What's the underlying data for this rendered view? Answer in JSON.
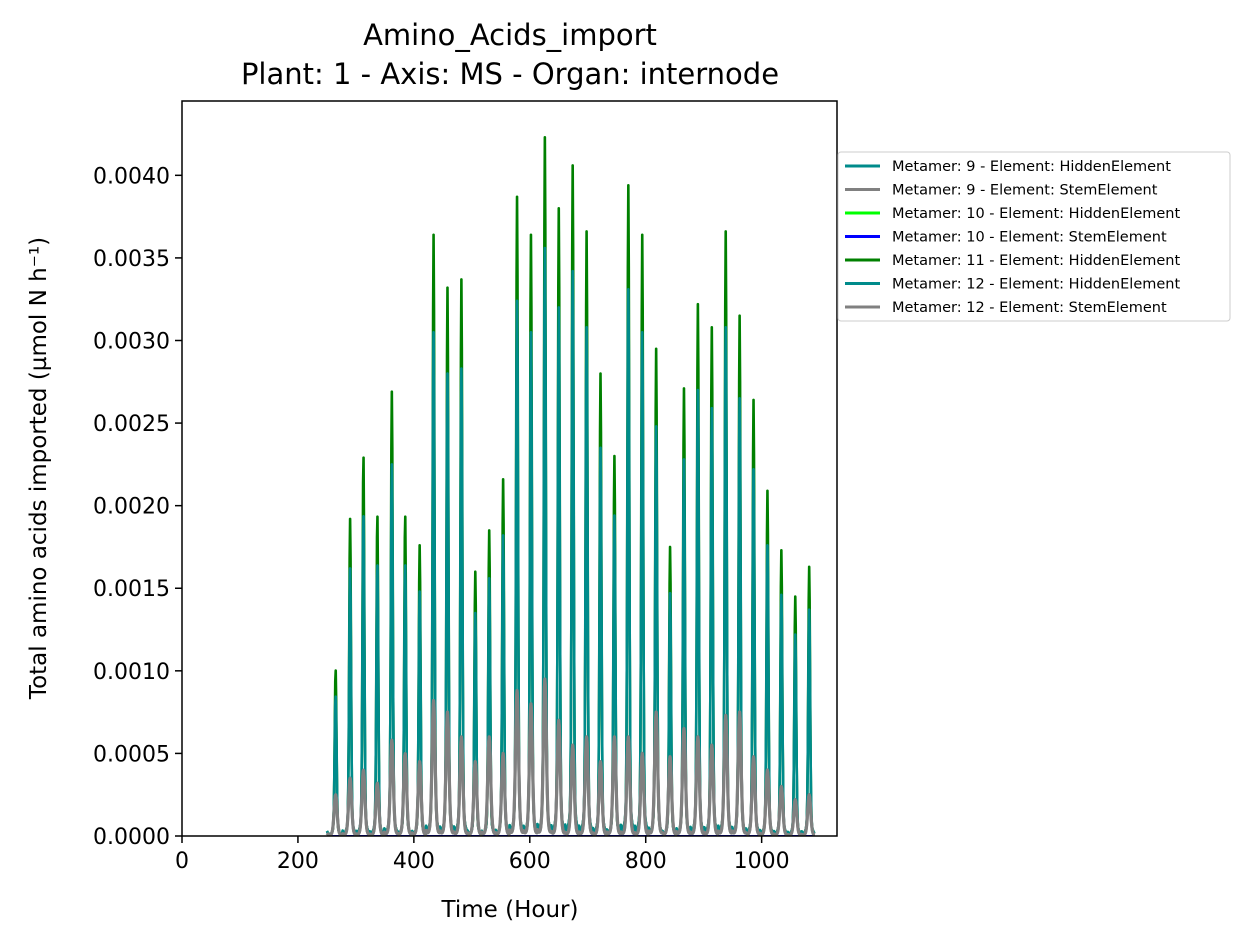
{
  "chart_data": {
    "type": "line",
    "title": "Amino_Acids_import",
    "subtitle": "Plant: 1 - Axis: MS - Organ: internode",
    "xlabel": "Time (Hour)",
    "ylabel": "Total amino acids imported (µmol N h⁻¹)",
    "xlim": [
      0,
      1130
    ],
    "ylim": [
      0,
      0.00445
    ],
    "xticks": [
      0,
      200,
      400,
      600,
      800,
      1000
    ],
    "xtick_labels": [
      "0",
      "200",
      "400",
      "600",
      "800",
      "1000"
    ],
    "yticks": [
      0,
      0.0005,
      0.001,
      0.0015,
      0.002,
      0.0025,
      0.003,
      0.0035,
      0.004
    ],
    "ytick_labels": [
      "0.0000",
      "0.0005",
      "0.0010",
      "0.0015",
      "0.0020",
      "0.0025",
      "0.0030",
      "0.0035",
      "0.0040"
    ],
    "grid": false,
    "legend_placement": "outside-right",
    "series": [
      {
        "name": "Metamer: 9 - Element: HiddenElement",
        "color": "#008b8b",
        "kind": "hidden"
      },
      {
        "name": "Metamer: 9 - Element: StemElement",
        "color": "#808080",
        "kind": "stem"
      },
      {
        "name": "Metamer: 10 - Element: HiddenElement",
        "color": "#00ff00",
        "kind": "hidden"
      },
      {
        "name": "Metamer: 10 - Element: StemElement",
        "color": "#0000ff",
        "kind": "stem"
      },
      {
        "name": "Metamer: 11 - Element: HiddenElement",
        "color": "#008000",
        "kind": "hidden"
      },
      {
        "name": "Metamer: 12 - Element: HiddenElement",
        "color": "#008b8b",
        "kind": "hidden"
      },
      {
        "name": "Metamer: 12 - Element: StemElement",
        "color": "#808080",
        "kind": "stem"
      }
    ],
    "daily_peaks": {
      "x": [
        265,
        290,
        313,
        337,
        362,
        385,
        410,
        434,
        458,
        482,
        506,
        530,
        554,
        578,
        602,
        626,
        650,
        674,
        698,
        722,
        746,
        770,
        794,
        818,
        842,
        866,
        890,
        914,
        938,
        962,
        986,
        1010,
        1034,
        1058,
        1082
      ],
      "green": [
        0.00101,
        0.00192,
        0.00231,
        0.00195,
        0.00269,
        0.00195,
        0.00176,
        0.00364,
        0.00332,
        0.00337,
        0.0016,
        0.00185,
        0.00216,
        0.00387,
        0.00364,
        0.00423,
        0.0038,
        0.00406,
        0.00366,
        0.0028,
        0.0023,
        0.00394,
        0.00364,
        0.00295,
        0.00175,
        0.00271,
        0.00322,
        0.00308,
        0.00366,
        0.00315,
        0.00264,
        0.00209,
        0.00173,
        0.00145,
        0.00163
      ],
      "teal": [
        0.00085,
        0.00162,
        0.00195,
        0.00165,
        0.00225,
        0.00165,
        0.00148,
        0.00305,
        0.0028,
        0.00283,
        0.00135,
        0.00156,
        0.00182,
        0.00324,
        0.00305,
        0.00356,
        0.0032,
        0.00342,
        0.00308,
        0.00235,
        0.00194,
        0.00331,
        0.00305,
        0.00248,
        0.00147,
        0.00228,
        0.0027,
        0.00259,
        0.00308,
        0.00265,
        0.00222,
        0.00176,
        0.00146,
        0.00122,
        0.00137
      ],
      "gray": [
        0.00025,
        0.00035,
        0.0004,
        0.00032,
        0.00058,
        0.0005,
        0.00045,
        0.00082,
        0.00075,
        0.0006,
        0.00045,
        0.0006,
        0.0005,
        0.00088,
        0.0008,
        0.00095,
        0.0007,
        0.00055,
        0.0006,
        0.00045,
        0.0006,
        0.0006,
        0.0005,
        0.00075,
        0.00048,
        0.00065,
        0.0006,
        0.00055,
        0.00073,
        0.00075,
        0.00048,
        0.0004,
        0.0003,
        0.00022,
        0.00025
      ],
      "start_x": 250,
      "end_x": 1092
    }
  }
}
